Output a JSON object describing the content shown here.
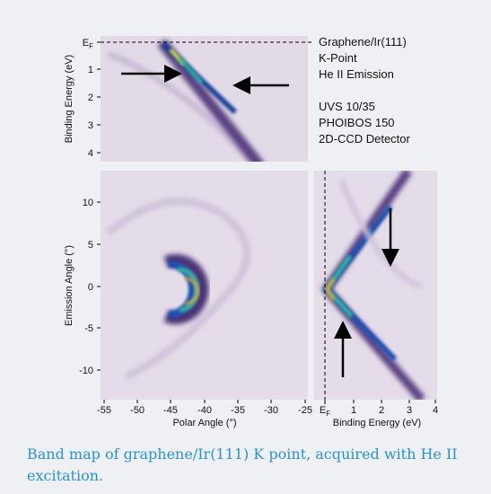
{
  "figure": {
    "info": [
      "Graphene/Ir(111)",
      "K-Point",
      "He II Emission",
      "UVS 10/35",
      "PHOIBOS 150",
      "2D-CCD Detector"
    ],
    "top_panel": {
      "y_label": "Binding Energy (eV)",
      "y_ticks": [
        {
          "text": "E",
          "subscript": "F"
        },
        "1",
        "2",
        "3",
        "4"
      ]
    },
    "left_panel": {
      "y_label": "Emission Angle (°)",
      "y_ticks": [
        "10",
        "5",
        "0",
        "-5",
        "-10"
      ],
      "x_label": "Polar Angle (°)",
      "x_ticks": [
        "-55",
        "-50",
        "-45",
        "-40",
        "-35",
        "-30",
        "-25"
      ]
    },
    "right_panel": {
      "x_label": "Binding Energy (eV)",
      "x_ticks": [
        {
          "text": "E",
          "subscript": "F"
        },
        "1",
        "2",
        "3",
        "4"
      ]
    }
  },
  "caption": "Band map of graphene/Ir(111) K point, acquired with He II excitation."
}
